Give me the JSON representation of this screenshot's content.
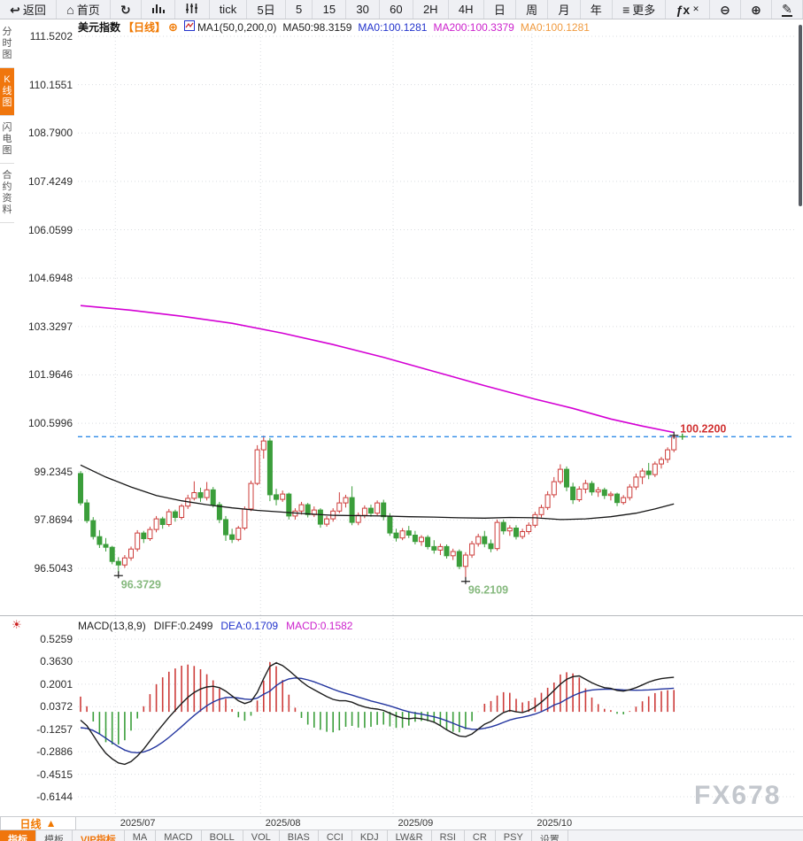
{
  "toolbar": {
    "items": [
      {
        "name": "back",
        "icon": "↩",
        "label": "返回"
      },
      {
        "name": "home",
        "icon": "⌂",
        "label": "首页"
      },
      {
        "name": "refresh",
        "icon": "↻",
        "label": ""
      },
      {
        "name": "chart-type-bars",
        "svg": "bars",
        "label": ""
      },
      {
        "name": "chart-type-candles",
        "svg": "candles",
        "label": ""
      },
      {
        "name": "period-tick",
        "icon": "",
        "label": "tick"
      },
      {
        "name": "period-5d",
        "icon": "",
        "label": "5日"
      },
      {
        "name": "period-5",
        "icon": "",
        "label": "5"
      },
      {
        "name": "period-15",
        "icon": "",
        "label": "15"
      },
      {
        "name": "period-30",
        "icon": "",
        "label": "30"
      },
      {
        "name": "period-60",
        "icon": "",
        "label": "60"
      },
      {
        "name": "period-2h",
        "icon": "",
        "label": "2H"
      },
      {
        "name": "period-4h",
        "icon": "",
        "label": "4H"
      },
      {
        "name": "period-day",
        "icon": "",
        "label": "日"
      },
      {
        "name": "period-week",
        "icon": "",
        "label": "周"
      },
      {
        "name": "period-month",
        "icon": "",
        "label": "月"
      },
      {
        "name": "period-year",
        "icon": "",
        "label": "年"
      },
      {
        "name": "more",
        "icon": "≡",
        "label": "更多"
      },
      {
        "name": "fx-indicator",
        "icon": "ƒx",
        "badge": "✕",
        "label": ""
      },
      {
        "name": "zoom-out",
        "icon": "⊖",
        "label": ""
      },
      {
        "name": "zoom-in",
        "icon": "⊕",
        "label": ""
      },
      {
        "name": "draw",
        "icon": "✎",
        "label": ""
      }
    ]
  },
  "sidebar": {
    "items": [
      {
        "name": "time-chart",
        "label": "分时图",
        "active": false
      },
      {
        "name": "kline-chart",
        "label": "K线图",
        "active": true
      },
      {
        "name": "lightning-chart",
        "label": "闪电图",
        "active": false
      },
      {
        "name": "contract-info",
        "label": "合约资料",
        "active": false
      }
    ]
  },
  "chart_header": {
    "symbol": "美元指数",
    "period_tag": "【日线】",
    "add_icon": "⊕",
    "ma_settings": "MA1(50,0,200,0)",
    "ma50_text": "MA50:98.3159",
    "ma0_blue_text": "MA0:100.1281",
    "ma200_text": "MA200:100.3379",
    "ma0_orange_text": "MA0:100.1281"
  },
  "macd_header": {
    "title": "MACD(13,8,9)",
    "diff_text": "DIFF:0.2499",
    "dea_text": "DEA:0.1709",
    "macd_text": "MACD:0.1582"
  },
  "icons": {
    "settings": "☀",
    "period_arrow": "▲"
  },
  "bottom_bar": {
    "period_label": "日线"
  },
  "indicator_tabs": [
    {
      "name": "indicators",
      "label": "指标",
      "style": "active"
    },
    {
      "name": "templates",
      "label": "模板",
      "style": ""
    },
    {
      "name": "vip-indicators",
      "label": "VIP指标",
      "style": "vip"
    },
    {
      "name": "ma",
      "label": "MA",
      "style": ""
    },
    {
      "name": "macd",
      "label": "MACD",
      "style": ""
    },
    {
      "name": "boll",
      "label": "BOLL",
      "style": ""
    },
    {
      "name": "vol",
      "label": "VOL",
      "style": ""
    },
    {
      "name": "bias",
      "label": "BIAS",
      "style": ""
    },
    {
      "name": "cci",
      "label": "CCI",
      "style": ""
    },
    {
      "name": "kdj",
      "label": "KDJ",
      "style": ""
    },
    {
      "name": "lwr",
      "label": "LW&R",
      "style": ""
    },
    {
      "name": "rsi",
      "label": "RSI",
      "style": ""
    },
    {
      "name": "cr",
      "label": "CR",
      "style": ""
    },
    {
      "name": "psy",
      "label": "PSY",
      "style": ""
    },
    {
      "name": "settings",
      "label": "设置",
      "style": ""
    }
  ],
  "watermark": "FX678",
  "colors": {
    "up_red": "#cd3c3a",
    "down_green": "#3b9e3b",
    "ma50": "#151515",
    "ma200": "#d400d4",
    "diff_line": "#1c1c1c",
    "dea_line": "#23359f",
    "dashed_blue": "#2f8be8",
    "last_price_red": "#d03030",
    "low_green": "#86b97e",
    "grid": "#d9dce0",
    "accent_orange": "#f0760d"
  },
  "chart_data": [
    {
      "type": "candlestick",
      "title": "美元指数 日线",
      "ylim": [
        96.5043,
        111.5202
      ],
      "y_ticks": [
        111.5202,
        110.1551,
        108.79,
        107.4249,
        106.0599,
        104.6948,
        103.3297,
        101.9646,
        100.5996,
        99.2345,
        97.8694,
        96.5043
      ],
      "x_months": [
        {
          "label": "2025/07",
          "start_idx": 6
        },
        {
          "label": "2025/08",
          "start_idx": 29
        },
        {
          "label": "2025/09",
          "start_idx": 50
        },
        {
          "label": "2025/10",
          "start_idx": 72
        }
      ],
      "last_price": 100.22,
      "last_price_label": "100.2200",
      "low_marks": [
        {
          "idx": 6,
          "price": 96.3729,
          "label": "96.3729"
        },
        {
          "idx": 61,
          "price": 96.2109,
          "label": "96.2109"
        }
      ],
      "high_mark": {
        "idx": 94,
        "price": 100.26
      },
      "candles_ohlc": [
        [
          99.18,
          99.25,
          98.28,
          98.35
        ],
        [
          98.35,
          98.45,
          97.78,
          97.85
        ],
        [
          97.85,
          97.95,
          97.32,
          97.4
        ],
        [
          97.4,
          97.58,
          97.08,
          97.18
        ],
        [
          97.18,
          97.36,
          96.98,
          97.1
        ],
        [
          97.1,
          97.14,
          96.62,
          96.7
        ],
        [
          96.7,
          96.82,
          96.37,
          96.6
        ],
        [
          96.6,
          96.88,
          96.52,
          96.8
        ],
        [
          96.8,
          97.12,
          96.72,
          97.05
        ],
        [
          97.05,
          97.58,
          96.98,
          97.5
        ],
        [
          97.5,
          97.56,
          97.22,
          97.34
        ],
        [
          97.34,
          97.68,
          97.28,
          97.6
        ],
        [
          97.6,
          97.98,
          97.52,
          97.9
        ],
        [
          97.9,
          97.96,
          97.62,
          97.74
        ],
        [
          97.74,
          98.18,
          97.68,
          98.1
        ],
        [
          98.1,
          98.16,
          97.82,
          97.94
        ],
        [
          97.94,
          98.32,
          97.88,
          98.26
        ],
        [
          98.26,
          98.58,
          98.18,
          98.48
        ],
        [
          98.48,
          98.96,
          98.42,
          98.64
        ],
        [
          98.64,
          98.78,
          98.38,
          98.5
        ],
        [
          98.5,
          98.94,
          98.42,
          98.72
        ],
        [
          98.72,
          98.8,
          98.22,
          98.3
        ],
        [
          98.3,
          98.38,
          97.78,
          97.88
        ],
        [
          97.88,
          97.98,
          97.28,
          97.45
        ],
        [
          97.45,
          97.62,
          97.22,
          97.32
        ],
        [
          97.32,
          97.7,
          97.27,
          97.64
        ],
        [
          97.64,
          98.25,
          97.58,
          98.18
        ],
        [
          98.18,
          98.98,
          98.12,
          98.9
        ],
        [
          98.9,
          99.98,
          98.85,
          99.85
        ],
        [
          99.85,
          100.25,
          99.6,
          100.1
        ],
        [
          100.1,
          100.18,
          98.4,
          98.58
        ],
        [
          98.58,
          98.75,
          98.28,
          98.45
        ],
        [
          98.45,
          98.7,
          98.38,
          98.6
        ],
        [
          98.6,
          98.64,
          97.88,
          97.98
        ],
        [
          97.98,
          98.2,
          97.88,
          98.12
        ],
        [
          98.12,
          98.38,
          98.02,
          98.3
        ],
        [
          98.3,
          98.35,
          97.94,
          98.02
        ],
        [
          98.02,
          98.25,
          97.95,
          98.15
        ],
        [
          98.15,
          98.2,
          97.65,
          97.75
        ],
        [
          97.75,
          97.98,
          97.68,
          97.9
        ],
        [
          97.9,
          98.2,
          97.82,
          98.12
        ],
        [
          98.12,
          98.65,
          98.06,
          98.35
        ],
        [
          98.35,
          98.58,
          98.22,
          98.5
        ],
        [
          98.5,
          98.82,
          97.72,
          97.8
        ],
        [
          97.8,
          98.08,
          97.72,
          98.0
        ],
        [
          98.0,
          98.28,
          97.92,
          98.2
        ],
        [
          98.2,
          98.3,
          97.96,
          98.06
        ],
        [
          98.06,
          98.42,
          98.0,
          98.35
        ],
        [
          98.35,
          98.44,
          97.86,
          97.96
        ],
        [
          97.96,
          98.06,
          97.42,
          97.5
        ],
        [
          97.5,
          97.62,
          97.26,
          97.36
        ],
        [
          97.36,
          97.64,
          97.3,
          97.56
        ],
        [
          97.56,
          97.7,
          97.36,
          97.44
        ],
        [
          97.44,
          97.56,
          97.18,
          97.26
        ],
        [
          97.26,
          97.44,
          97.14,
          97.38
        ],
        [
          97.38,
          97.44,
          97.04,
          97.12
        ],
        [
          97.12,
          97.3,
          96.92,
          97.02
        ],
        [
          97.02,
          97.2,
          96.88,
          97.12
        ],
        [
          97.12,
          97.18,
          96.78,
          96.86
        ],
        [
          96.86,
          97.06,
          96.74,
          96.98
        ],
        [
          96.98,
          97.04,
          96.48,
          96.56
        ],
        [
          96.56,
          96.96,
          96.21,
          96.88
        ],
        [
          96.88,
          97.28,
          96.8,
          97.2
        ],
        [
          97.2,
          97.48,
          97.12,
          97.4
        ],
        [
          97.4,
          97.56,
          97.1,
          97.2
        ],
        [
          97.2,
          97.32,
          96.96,
          97.06
        ],
        [
          97.06,
          97.88,
          97.0,
          97.8
        ],
        [
          97.8,
          97.88,
          97.46,
          97.56
        ],
        [
          97.56,
          97.72,
          97.42,
          97.64
        ],
        [
          97.64,
          97.72,
          97.32,
          97.4
        ],
        [
          97.4,
          97.62,
          97.33,
          97.54
        ],
        [
          97.54,
          97.8,
          97.46,
          97.72
        ],
        [
          97.72,
          98.1,
          97.65,
          98.02
        ],
        [
          98.02,
          98.3,
          97.94,
          98.22
        ],
        [
          98.22,
          98.68,
          98.15,
          98.58
        ],
        [
          98.58,
          99.08,
          98.5,
          98.95
        ],
        [
          98.95,
          99.44,
          98.88,
          99.3
        ],
        [
          99.3,
          99.38,
          98.68,
          98.8
        ],
        [
          98.8,
          98.92,
          98.32,
          98.44
        ],
        [
          98.44,
          98.82,
          98.38,
          98.74
        ],
        [
          98.74,
          99.0,
          98.62,
          98.9
        ],
        [
          98.9,
          98.97,
          98.56,
          98.66
        ],
        [
          98.66,
          98.8,
          98.52,
          98.72
        ],
        [
          98.72,
          98.78,
          98.46,
          98.56
        ],
        [
          98.56,
          98.67,
          98.42,
          98.6
        ],
        [
          98.6,
          98.64,
          98.26,
          98.36
        ],
        [
          98.36,
          98.57,
          98.3,
          98.5
        ],
        [
          98.5,
          98.88,
          98.42,
          98.8
        ],
        [
          98.8,
          99.18,
          98.72,
          99.08
        ],
        [
          99.08,
          99.33,
          98.88,
          99.25
        ],
        [
          99.25,
          99.48,
          99.02,
          99.15
        ],
        [
          99.15,
          99.52,
          99.08,
          99.45
        ],
        [
          99.45,
          99.65,
          99.32,
          99.58
        ],
        [
          99.58,
          99.92,
          99.48,
          99.85
        ],
        [
          99.85,
          100.26,
          99.78,
          100.22
        ]
      ],
      "ma50_points": [
        [
          0,
          99.42
        ],
        [
          4,
          99.08
        ],
        [
          8,
          98.8
        ],
        [
          12,
          98.56
        ],
        [
          16,
          98.41
        ],
        [
          20,
          98.3
        ],
        [
          24,
          98.21
        ],
        [
          28,
          98.14
        ],
        [
          32,
          98.09
        ],
        [
          36,
          98.04
        ],
        [
          40,
          98.0
        ],
        [
          44,
          97.99
        ],
        [
          48,
          97.98
        ],
        [
          52,
          97.96
        ],
        [
          56,
          97.95
        ],
        [
          60,
          97.93
        ],
        [
          64,
          97.92
        ],
        [
          68,
          97.94
        ],
        [
          72,
          97.93
        ],
        [
          76,
          97.88
        ],
        [
          80,
          97.9
        ],
        [
          84,
          97.96
        ],
        [
          88,
          98.06
        ],
        [
          91,
          98.18
        ],
        [
          94,
          98.32
        ]
      ],
      "ma200_points": [
        [
          0,
          103.92
        ],
        [
          8,
          103.79
        ],
        [
          16,
          103.62
        ],
        [
          24,
          103.42
        ],
        [
          32,
          103.14
        ],
        [
          40,
          102.82
        ],
        [
          48,
          102.46
        ],
        [
          56,
          102.06
        ],
        [
          64,
          101.66
        ],
        [
          72,
          101.28
        ],
        [
          78,
          101.02
        ],
        [
          84,
          100.72
        ],
        [
          89,
          100.52
        ],
        [
          94,
          100.34
        ]
      ]
    },
    {
      "type": "bar",
      "title": "MACD(13,8,9)",
      "y_ticks": [
        0.5259,
        0.363,
        0.2001,
        0.0372,
        -0.1257,
        -0.2886,
        -0.4515,
        -0.6144
      ],
      "hist_rule": "macd = 2*(diff-dea)",
      "diff": [
        -0.06,
        -0.1,
        -0.17,
        -0.24,
        -0.3,
        -0.34,
        -0.37,
        -0.38,
        -0.36,
        -0.32,
        -0.27,
        -0.21,
        -0.15,
        -0.095,
        -0.04,
        0.01,
        0.06,
        0.105,
        0.14,
        0.165,
        0.18,
        0.185,
        0.175,
        0.15,
        0.115,
        0.08,
        0.06,
        0.075,
        0.14,
        0.24,
        0.33,
        0.355,
        0.335,
        0.3,
        0.26,
        0.22,
        0.185,
        0.16,
        0.135,
        0.11,
        0.09,
        0.08,
        0.08,
        0.07,
        0.05,
        0.035,
        0.025,
        0.02,
        0.01,
        -0.01,
        -0.03,
        -0.045,
        -0.05,
        -0.045,
        -0.05,
        -0.06,
        -0.075,
        -0.1,
        -0.13,
        -0.155,
        -0.175,
        -0.18,
        -0.16,
        -0.125,
        -0.09,
        -0.07,
        -0.035,
        -0.005,
        0.01,
        0.0,
        -0.005,
        0.01,
        0.035,
        0.07,
        0.11,
        0.155,
        0.2,
        0.235,
        0.255,
        0.26,
        0.235,
        0.21,
        0.19,
        0.175,
        0.17,
        0.155,
        0.15,
        0.16,
        0.175,
        0.195,
        0.215,
        0.23,
        0.24,
        0.246,
        0.2499
      ],
      "dea": [
        -0.115,
        -0.12,
        -0.135,
        -0.16,
        -0.19,
        -0.222,
        -0.252,
        -0.277,
        -0.292,
        -0.296,
        -0.29,
        -0.274,
        -0.25,
        -0.22,
        -0.185,
        -0.147,
        -0.107,
        -0.066,
        -0.026,
        0.011,
        0.044,
        0.071,
        0.091,
        0.103,
        0.105,
        0.1,
        0.092,
        0.089,
        0.099,
        0.127,
        0.15,
        0.19,
        0.22,
        0.238,
        0.245,
        0.242,
        0.231,
        0.217,
        0.2,
        0.182,
        0.164,
        0.147,
        0.134,
        0.121,
        0.107,
        0.093,
        0.079,
        0.067,
        0.056,
        0.043,
        0.028,
        0.013,
        0.0,
        -0.009,
        -0.017,
        -0.026,
        -0.036,
        -0.049,
        -0.065,
        -0.083,
        -0.101,
        -0.117,
        -0.126,
        -0.126,
        -0.119,
        -0.109,
        -0.094,
        -0.076,
        -0.059,
        -0.047,
        -0.039,
        -0.029,
        -0.016,
        0.001,
        0.023,
        0.049,
        0.065,
        0.092,
        0.116,
        0.136,
        0.15,
        0.158,
        0.162,
        0.164,
        0.164,
        0.162,
        0.159,
        0.157,
        0.156,
        0.157,
        0.159,
        0.162,
        0.165,
        0.168,
        0.1709
      ]
    }
  ]
}
